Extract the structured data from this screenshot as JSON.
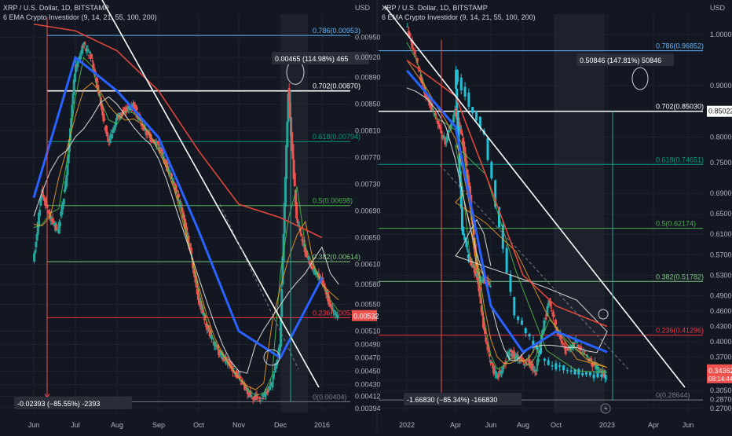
{
  "colors": {
    "background": "#131722",
    "grid": "#1e222d",
    "axis_text": "#b2b5be",
    "up": "#26a69a",
    "down": "#ef5350",
    "cyan_up": "#22c1d6",
    "ema_blue": "#2962ff",
    "ema_red": "#e0463a",
    "ema_white": "#d9d9d9",
    "ema_orange": "#f7a325",
    "ema_green": "#55c34b",
    "trendline": "#ffffff",
    "fib_0": "#787b86",
    "fib_236": "#f23645",
    "fib_382": "#81c784",
    "fib_5": "#4caf50",
    "fib_618": "#089981",
    "fib_702": "#ffffff",
    "fib_786": "#64b5f6"
  },
  "chart_data": [
    {
      "type": "line",
      "symbol_title": "XRP / U.S. Dollar, 1D, BITSTAMP",
      "indicator_title": "6 EMA Crypto Investidor (9, 14, 21, 55, 100, 200)",
      "currency_label": "USD",
      "y_ticks": [
        "0.00950",
        "0.00920",
        "0.00890",
        "0.00850",
        "0.00810",
        "0.00770",
        "0.00730",
        "0.00690",
        "0.00650",
        "0.00610",
        "0.00580",
        "0.00550",
        "0.00510",
        "0.00490",
        "0.00470",
        "0.00450",
        "0.00430",
        "0.00412",
        "0.00394"
      ],
      "x_ticks": [
        "Jun",
        "Jul",
        "Aug",
        "Sep",
        "Oct",
        "Nov",
        "Dec",
        "2016"
      ],
      "ylim": [
        0.00388,
        0.00985
      ],
      "fib_levels": [
        {
          "ratio": "0.786",
          "price": 0.00953,
          "label": "0.786(0.00953)"
        },
        {
          "ratio": "0.702",
          "price": 0.0087,
          "label": "0.702(0.00870)"
        },
        {
          "ratio": "0.618",
          "price": 0.00794,
          "label": "0.618(0.00794)"
        },
        {
          "ratio": "0.5",
          "price": 0.00698,
          "label": "0.5(0.00698)"
        },
        {
          "ratio": "0.382",
          "price": 0.00614,
          "label": "0.382(0.00614)"
        },
        {
          "ratio": "0.236",
          "price": 0.0053,
          "label": "0.236(0.00530)"
        },
        {
          "ratio": "0",
          "price": 0.00404,
          "label": "0(0.00404)"
        }
      ],
      "last_price": "0.00532",
      "annotations": [
        "0.00465 (114.98%) 465",
        "-0.02393 (−85.55%) -2393"
      ],
      "close_series": [
        [
          "Jun",
          0.0061
        ],
        [
          "",
          0.0072
        ],
        [
          "",
          0.0068
        ],
        [
          "",
          0.0066
        ],
        [
          "",
          0.0074
        ],
        [
          "Jul",
          0.009
        ],
        [
          "",
          0.0094
        ],
        [
          "",
          0.0092
        ],
        [
          "",
          0.0086
        ],
        [
          "",
          0.0079
        ],
        [
          "Aug",
          0.0083
        ],
        [
          "",
          0.0084
        ],
        [
          "",
          0.0085
        ],
        [
          "",
          0.0082
        ],
        [
          "",
          0.008
        ],
        [
          "Sep",
          0.0079
        ],
        [
          "",
          0.0076
        ],
        [
          "",
          0.0073
        ],
        [
          "",
          0.0069
        ],
        [
          "",
          0.0063
        ],
        [
          "Oct",
          0.0056
        ],
        [
          "",
          0.0052
        ],
        [
          "",
          0.0049
        ],
        [
          "",
          0.0047
        ],
        [
          "",
          0.0046
        ],
        [
          "Nov",
          0.0044
        ],
        [
          "",
          0.0042
        ],
        [
          "",
          0.0041
        ],
        [
          "",
          0.0041
        ],
        [
          "",
          0.0043
        ],
        [
          "Dec",
          0.0049
        ],
        [
          "",
          0.0087
        ],
        [
          "",
          0.0068
        ],
        [
          "",
          0.0063
        ],
        [
          "",
          0.006
        ],
        [
          "2016",
          0.0059
        ],
        [
          "",
          0.0055
        ],
        [
          "",
          0.0053
        ]
      ],
      "ema_200": [
        [
          "Jun",
          0.0097
        ],
        [
          "Jul",
          0.0096
        ],
        [
          "Aug",
          0.0093
        ],
        [
          "Sep",
          0.0087
        ],
        [
          "Oct",
          0.0078
        ],
        [
          "Nov",
          0.007
        ],
        [
          "Dec",
          0.0068
        ],
        [
          "2016",
          0.0065
        ]
      ],
      "ema_55": [
        [
          "Jun",
          0.0071
        ],
        [
          "Jul",
          0.0092
        ],
        [
          "Aug",
          0.0087
        ],
        [
          "Sep",
          0.008
        ],
        [
          "Oct",
          0.0066
        ],
        [
          "Nov",
          0.0051
        ],
        [
          "Dec",
          0.0047
        ],
        [
          "2016",
          0.0059
        ]
      ]
    },
    {
      "type": "line",
      "symbol_title": "XRP / U.S. Dollar, 1D, BITSTAMP",
      "indicator_title": "6 EMA Crypto Investidor (9, 14, 21, 55, 100, 200)",
      "currency_label": "USD",
      "y_ticks": [
        "1.00000",
        "0.90000",
        "0.80000",
        "0.75000",
        "0.69000",
        "0.65000",
        "0.61000",
        "0.57000",
        "0.53000",
        "0.49000",
        "0.46000",
        "0.43000",
        "0.40000",
        "0.37000",
        "0.32500",
        "0.30500",
        "0.28700",
        "0.27000"
      ],
      "x_ticks": [
        "2022",
        "Apr",
        "Jun",
        "Aug",
        "Oct",
        "2023",
        "Apr",
        "Jun"
      ],
      "ylim": [
        0.262,
        1.04
      ],
      "fib_levels": [
        {
          "ratio": "0.786",
          "price": 0.96852,
          "label": "0.786(0.96852)"
        },
        {
          "ratio": "0.702",
          "price": 0.8503,
          "label": "0.702(0.85030)"
        },
        {
          "ratio": "0.618",
          "price": 0.74651,
          "label": "0.618(0.74651)"
        },
        {
          "ratio": "0.5",
          "price": 0.62174,
          "label": "0.5(0.62174)"
        },
        {
          "ratio": "0.382",
          "price": 0.51782,
          "label": "0.382(0.51782)"
        },
        {
          "ratio": "0.236",
          "price": 0.41296,
          "label": "0.236(0.41296)"
        },
        {
          "ratio": "0",
          "price": 0.28644,
          "label": "0(0.28644)"
        }
      ],
      "current_price_label": "0.85022",
      "last_price": "0.34362",
      "countdown": "08:14:44",
      "annotations": [
        "0.50846 (147.81%) 50846",
        "-1.66830 (−85.34%) -166830"
      ],
      "close_series": [
        [
          "2022",
          1.02
        ],
        [
          "",
          0.95
        ],
        [
          "",
          0.88
        ],
        [
          "",
          0.84
        ],
        [
          "",
          0.79
        ],
        [
          "Apr",
          0.85
        ],
        [
          "",
          0.8
        ],
        [
          "",
          0.7
        ],
        [
          "",
          0.55
        ],
        [
          "",
          0.43
        ],
        [
          "Jun",
          0.36
        ],
        [
          "",
          0.33
        ],
        [
          "",
          0.35
        ],
        [
          "",
          0.38
        ],
        [
          "",
          0.37
        ],
        [
          "Aug",
          0.36
        ],
        [
          "",
          0.36
        ],
        [
          "",
          0.34
        ],
        [
          "",
          0.42
        ],
        [
          "",
          0.48
        ],
        [
          "Oct",
          0.43
        ],
        [
          "",
          0.38
        ],
        [
          "",
          0.4
        ],
        [
          "",
          0.37
        ],
        [
          "",
          0.35
        ],
        [
          "2023",
          0.33
        ],
        [
          "",
          0.34
        ],
        [
          "",
          0.36
        ],
        [
          "",
          0.45
        ],
        [
          "",
          0.8
        ],
        [
          "Apr",
          0.93
        ],
        [
          "",
          0.62
        ],
        [
          "",
          0.56
        ],
        [
          "",
          0.53
        ],
        [
          "",
          0.52
        ],
        [
          "Jun",
          0.51
        ]
      ],
      "ema_200": [
        [
          "2022",
          0.95
        ],
        [
          "Apr",
          0.88
        ],
        [
          "Jun",
          0.7
        ],
        [
          "Aug",
          0.53
        ],
        [
          "Oct",
          0.47
        ],
        [
          "2023",
          0.43
        ]
      ],
      "ema_55": [
        [
          "2022",
          0.93
        ],
        [
          "Apr",
          0.82
        ],
        [
          "Jun",
          0.47
        ],
        [
          "Aug",
          0.38
        ],
        [
          "Oct",
          0.42
        ],
        [
          "2023",
          0.38
        ]
      ]
    }
  ]
}
